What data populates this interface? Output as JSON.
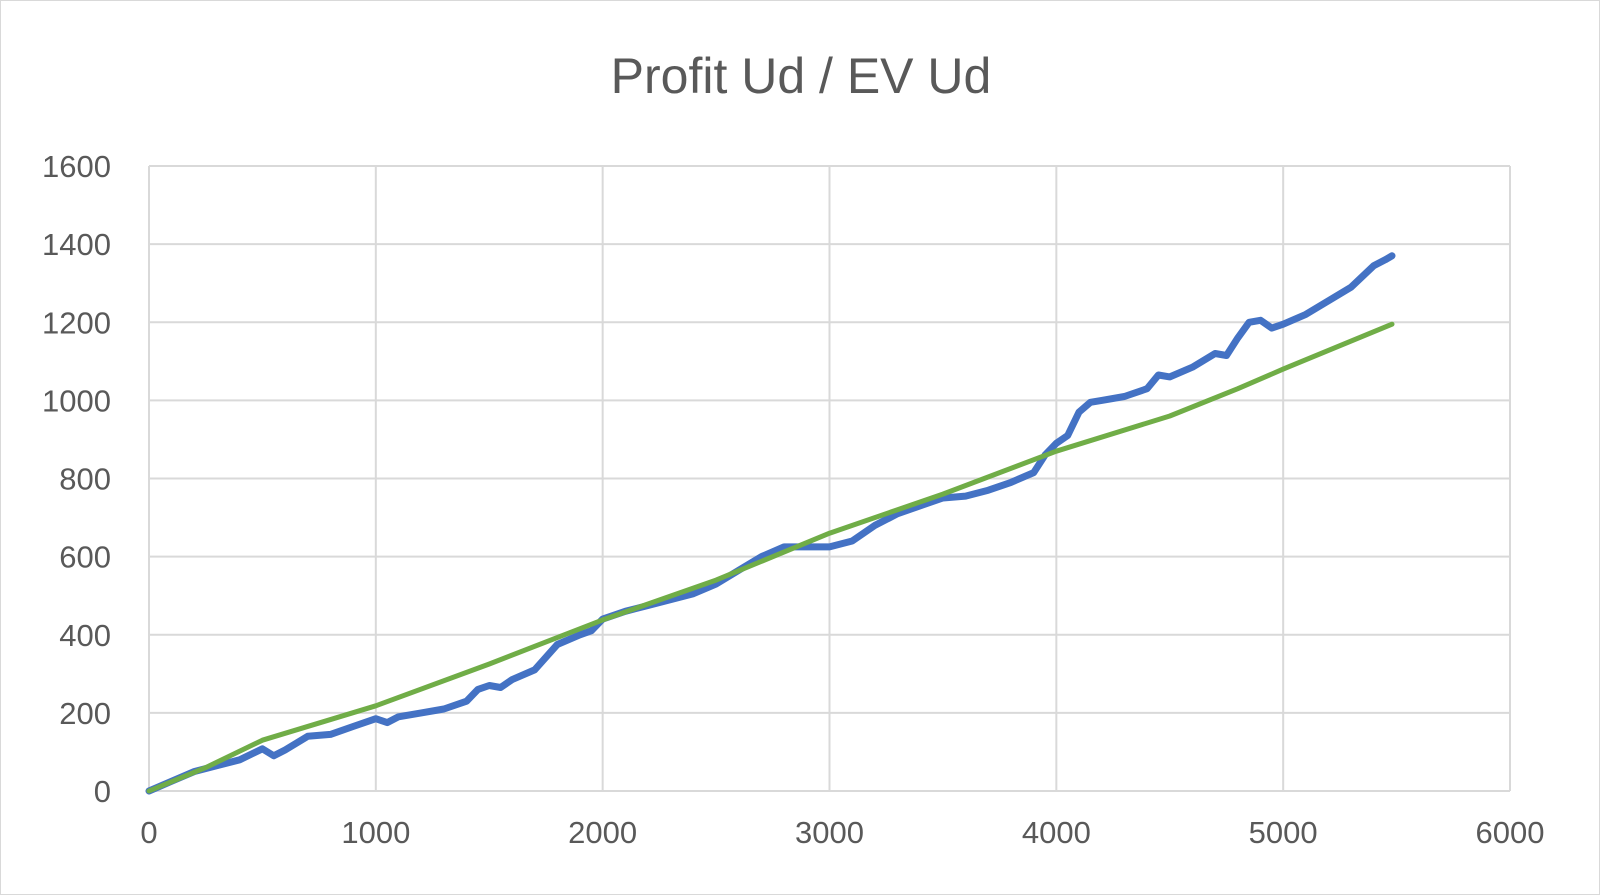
{
  "chart_data": {
    "type": "line",
    "title": "Profit Ud / EV Ud",
    "xlabel": "",
    "ylabel": "",
    "xlim": [
      0,
      6000
    ],
    "ylim": [
      0,
      1600
    ],
    "x_ticks": [
      "0",
      "1000",
      "2000",
      "3000",
      "4000",
      "5000",
      "6000"
    ],
    "y_ticks": [
      "0",
      "200",
      "400",
      "600",
      "800",
      "1000",
      "1200",
      "1400",
      "1600"
    ],
    "grid": "on",
    "legend": "none",
    "series": [
      {
        "color": "#4472c4",
        "points": [
          [
            0,
            0
          ],
          [
            100,
            25
          ],
          [
            200,
            50
          ],
          [
            300,
            65
          ],
          [
            400,
            80
          ],
          [
            500,
            108
          ],
          [
            550,
            90
          ],
          [
            600,
            105
          ],
          [
            700,
            140
          ],
          [
            800,
            145
          ],
          [
            900,
            165
          ],
          [
            1000,
            185
          ],
          [
            1050,
            175
          ],
          [
            1100,
            190
          ],
          [
            1200,
            200
          ],
          [
            1300,
            210
          ],
          [
            1400,
            230
          ],
          [
            1450,
            260
          ],
          [
            1500,
            270
          ],
          [
            1550,
            265
          ],
          [
            1600,
            285
          ],
          [
            1700,
            310
          ],
          [
            1800,
            375
          ],
          [
            1900,
            400
          ],
          [
            1950,
            410
          ],
          [
            2000,
            440
          ],
          [
            2100,
            460
          ],
          [
            2200,
            475
          ],
          [
            2300,
            490
          ],
          [
            2400,
            505
          ],
          [
            2500,
            530
          ],
          [
            2600,
            565
          ],
          [
            2700,
            600
          ],
          [
            2800,
            625
          ],
          [
            2900,
            625
          ],
          [
            3000,
            625
          ],
          [
            3100,
            640
          ],
          [
            3200,
            680
          ],
          [
            3300,
            710
          ],
          [
            3400,
            730
          ],
          [
            3500,
            750
          ],
          [
            3600,
            755
          ],
          [
            3700,
            770
          ],
          [
            3800,
            790
          ],
          [
            3900,
            815
          ],
          [
            3950,
            860
          ],
          [
            4000,
            890
          ],
          [
            4050,
            910
          ],
          [
            4100,
            970
          ],
          [
            4150,
            995
          ],
          [
            4200,
            1000
          ],
          [
            4300,
            1010
          ],
          [
            4400,
            1030
          ],
          [
            4450,
            1065
          ],
          [
            4500,
            1060
          ],
          [
            4600,
            1085
          ],
          [
            4700,
            1120
          ],
          [
            4750,
            1115
          ],
          [
            4800,
            1160
          ],
          [
            4850,
            1200
          ],
          [
            4900,
            1205
          ],
          [
            4950,
            1185
          ],
          [
            5000,
            1195
          ],
          [
            5100,
            1220
          ],
          [
            5200,
            1255
          ],
          [
            5300,
            1290
          ],
          [
            5400,
            1345
          ],
          [
            5450,
            1360
          ],
          [
            5480,
            1370
          ]
        ]
      },
      {
        "color": "#70ad47",
        "points": [
          [
            0,
            0
          ],
          [
            250,
            60
          ],
          [
            500,
            130
          ],
          [
            1000,
            218
          ],
          [
            1500,
            325
          ],
          [
            2000,
            438
          ],
          [
            2500,
            540
          ],
          [
            3000,
            660
          ],
          [
            3500,
            760
          ],
          [
            4000,
            870
          ],
          [
            4500,
            960
          ],
          [
            4800,
            1030
          ],
          [
            5000,
            1080
          ],
          [
            5480,
            1195
          ]
        ]
      }
    ]
  }
}
